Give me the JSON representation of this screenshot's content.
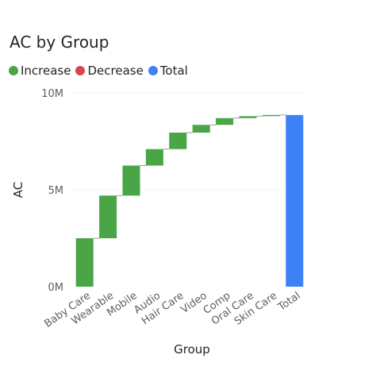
{
  "colors": {
    "increase": "#4aa546",
    "decrease": "#d64550",
    "total": "#3b82f6",
    "connector": "#9b9b9b",
    "grid": "#c8c8c8",
    "text": "#252423",
    "axis_text": "#605e5c"
  },
  "chart_data": {
    "type": "waterfall",
    "title": "AC by Group",
    "xlabel": "Group",
    "ylabel": "AC",
    "ylim": [
      0,
      10000000
    ],
    "yticks": [
      {
        "value": 0,
        "label": "0M"
      },
      {
        "value": 5000000,
        "label": "5M"
      },
      {
        "value": 10000000,
        "label": "10M"
      }
    ],
    "grid": true,
    "legend_position": "top-left",
    "legend": [
      {
        "label": "Increase",
        "color_key": "increase"
      },
      {
        "label": "Decrease",
        "color_key": "decrease"
      },
      {
        "label": "Total",
        "color_key": "total"
      }
    ],
    "categories": [
      "Baby Care",
      "Wearable",
      "Mobile",
      "Audio",
      "Hair Care",
      "Video",
      "Comp",
      "Oral Care",
      "Skin Care",
      "Total"
    ],
    "values": [
      2500000,
      2200000,
      1550000,
      850000,
      850000,
      400000,
      350000,
      100000,
      60000,
      8860000
    ],
    "kinds": [
      "increase",
      "increase",
      "increase",
      "increase",
      "increase",
      "increase",
      "increase",
      "increase",
      "increase",
      "total"
    ]
  }
}
